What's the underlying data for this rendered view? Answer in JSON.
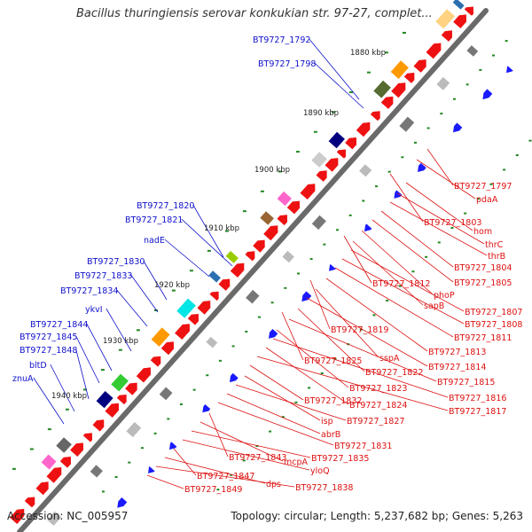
{
  "title": "Bacillus thuringiensis serovar konkukian str. 97-27, complet...",
  "footer": {
    "accession": "Accession: NC_005957",
    "summary": "Topology: circular; Length: 5,237,682 bp; Genes: 5,263"
  },
  "colors": {
    "background": "#ffffff",
    "backbone": "#808080",
    "forward_label": "#1010cc",
    "reverse_label": "#dd1111",
    "forward_gene": "#1a1aff",
    "reverse_gene": "#ee1111",
    "ruler_tick": "#228822"
  },
  "ruler_labels": [
    "1880 kbp",
    "1890 kbp",
    "1900 kbp",
    "1910 kbp",
    "1920 kbp",
    "1930 kbp",
    "1940 kbp"
  ],
  "forward_labels": [
    "BT9727_1792",
    "BT9727_1798",
    "BT9727_1820",
    "BT9727_1821",
    "nadE",
    "BT9727_1830",
    "BT9727_1833",
    "BT9727_1834",
    "ykvI",
    "BT9727_1844",
    "BT9727_1845",
    "BT9727_1848",
    "bltD",
    "znuA"
  ],
  "reverse_labels": [
    "BT9727_1797",
    "pdaA",
    "BT9727_1803",
    "hom",
    "thrC",
    "thrB",
    "BT9727_1804",
    "BT9727_1805",
    "BT9727_1812",
    "phoP",
    "sapB",
    "BT9727_1807",
    "BT9727_1808",
    "BT9727_1811",
    "BT9727_1819",
    "BT9727_1813",
    "sspA",
    "BT9727_1814",
    "BT9727_1825",
    "BT9727_1822",
    "BT9727_1815",
    "BT9727_1823",
    "BT9727_1816",
    "BT9727_1824",
    "BT9727_1817",
    "BT9727_1832",
    "isp",
    "BT9727_1827",
    "abrB",
    "BT9727_1831",
    "BT9727_1843",
    "mcpA",
    "BT9727_1835",
    "yloQ",
    "BT9727_1847",
    "dps",
    "BT9727_1838",
    "BT9727_1849"
  ]
}
